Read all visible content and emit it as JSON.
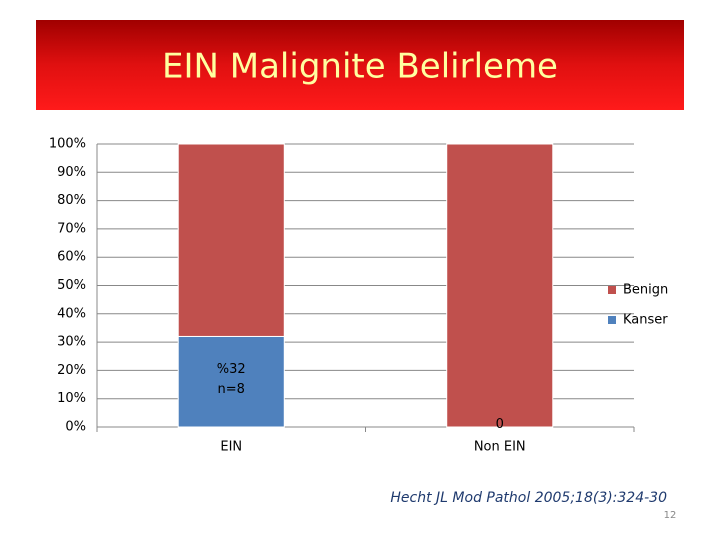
{
  "title": "EIN Malignite Belirleme",
  "chart_data": {
    "type": "bar",
    "stacked": true,
    "categories": [
      "EIN",
      "Non EIN"
    ],
    "series": [
      {
        "name": "Kanser",
        "color": "#4f81bd",
        "values": [
          32,
          0
        ],
        "value_labels": [
          "%32\nn=8",
          "0"
        ]
      },
      {
        "name": "Benign",
        "color": "#c0504d",
        "values": [
          68,
          100
        ]
      }
    ],
    "ylim": [
      0,
      100
    ],
    "yticks": [
      {
        "value": 0,
        "label": "0%"
      },
      {
        "value": 10,
        "label": "10%"
      },
      {
        "value": 20,
        "label": "20%"
      },
      {
        "value": 30,
        "label": "30%"
      },
      {
        "value": 40,
        "label": "40%"
      },
      {
        "value": 50,
        "label": "50%"
      },
      {
        "value": 60,
        "label": "60%"
      },
      {
        "value": 70,
        "label": "70%"
      },
      {
        "value": 80,
        "label": "80%"
      },
      {
        "value": 90,
        "label": "90%"
      },
      {
        "value": 100,
        "label": "100%"
      }
    ],
    "grid": true,
    "legend": "right"
  },
  "citation": "Hecht JL Mod Pathol 2005;18(3):324-30",
  "slide_number": "12"
}
